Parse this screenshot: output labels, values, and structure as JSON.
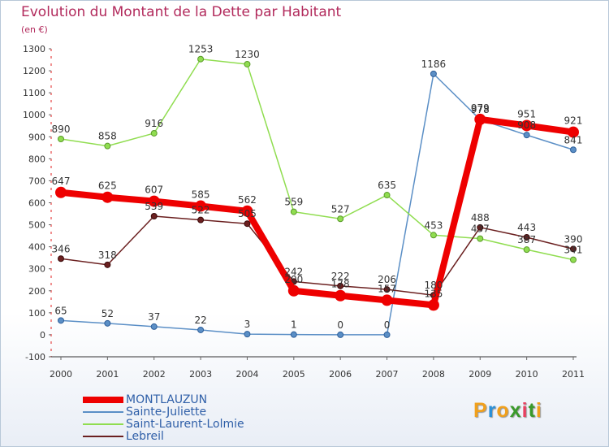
{
  "header": {
    "title": "Evolution du Montant de la Dette par Habitant",
    "subtitle": "(en €)"
  },
  "brand": {
    "letters": [
      "P",
      "r",
      "o",
      "x",
      "i",
      "t",
      "i"
    ],
    "colors": [
      "#f0a01c",
      "#2a90d8",
      "#f0a01c",
      "#3a9a2a",
      "#e84060",
      "#3a9a2a",
      "#f0a01c"
    ]
  },
  "chart_data": {
    "type": "line",
    "title": "Evolution du Montant de la Dette par Habitant",
    "subtitle": "(en €)",
    "xlabel": "",
    "ylabel": "",
    "x": [
      "2000",
      "2001",
      "2002",
      "2003",
      "2004",
      "2005",
      "2006",
      "2007",
      "2008",
      "2009",
      "2010",
      "2011"
    ],
    "ylim": [
      -100,
      1300
    ],
    "yticks": [
      -100,
      0,
      100,
      200,
      300,
      400,
      500,
      600,
      700,
      800,
      900,
      1000,
      1100,
      1200,
      1300
    ],
    "grid": false,
    "legend_position": "bottom-left",
    "series": [
      {
        "name": "MONTLAUZUN",
        "color": "#ee0000",
        "values": [
          647,
          625,
          607,
          585,
          562,
          200,
          178,
          157,
          135,
          979,
          951,
          921
        ],
        "labels": [
          "647",
          "625",
          "607",
          "585",
          "562",
          "200",
          "178",
          "157",
          "135",
          "979",
          "951",
          "921"
        ]
      },
      {
        "name": "Sainte-Juliette",
        "color": "#5b8fc6",
        "values": [
          65,
          52,
          37,
          22,
          3,
          1,
          0,
          0,
          1186,
          978,
          908,
          841
        ],
        "labels": [
          "65",
          "52",
          "37",
          "22",
          "3",
          "1",
          "0",
          "0",
          "1186",
          "978",
          "908",
          "841"
        ]
      },
      {
        "name": "Saint-Laurent-Lolmie",
        "color": "#90dd50",
        "values": [
          890,
          858,
          916,
          1253,
          1230,
          559,
          527,
          635,
          453,
          437,
          387,
          341
        ],
        "labels": [
          "890",
          "858",
          "916",
          "1253",
          "1230",
          "559",
          "527",
          "635",
          "453",
          "437",
          "387",
          "341"
        ]
      },
      {
        "name": "Lebreil",
        "color": "#6b2020",
        "values": [
          346,
          318,
          539,
          522,
          505,
          242,
          222,
          206,
          180,
          488,
          443,
          390
        ],
        "labels": [
          "346",
          "318",
          "539",
          "522",
          "505",
          "242",
          "222",
          "206",
          "180",
          "488",
          "443",
          "390"
        ]
      }
    ]
  }
}
